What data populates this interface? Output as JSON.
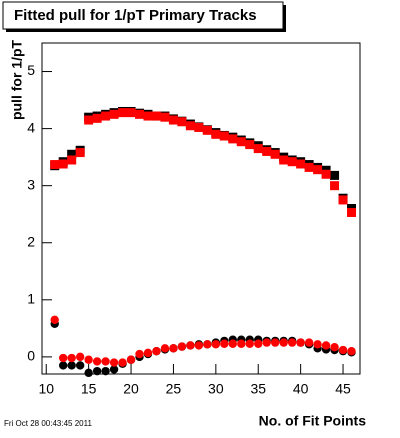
{
  "chart_data": {
    "type": "scatter",
    "title": "Fitted pull for 1/pT Primary Tracks",
    "y_label": "pull for 1/pT",
    "x_label": "No. of Fit Points",
    "footer": "Fri Oct 28 00:43:45 2011",
    "x": [
      11,
      12,
      13,
      14,
      15,
      16,
      17,
      18,
      19,
      20,
      21,
      22,
      23,
      24,
      25,
      26,
      27,
      28,
      29,
      30,
      31,
      32,
      33,
      34,
      35,
      36,
      37,
      38,
      39,
      40,
      41,
      42,
      43,
      44,
      45,
      46
    ],
    "series": [
      {
        "color": "#000000",
        "marker": "square",
        "values": [
          3.35,
          3.42,
          3.55,
          3.62,
          4.2,
          4.22,
          4.25,
          4.28,
          4.3,
          4.3,
          4.27,
          4.25,
          4.22,
          4.22,
          4.17,
          4.13,
          4.08,
          4.03,
          3.98,
          3.93,
          3.88,
          3.85,
          3.8,
          3.75,
          3.7,
          3.63,
          3.58,
          3.5,
          3.45,
          3.42,
          3.37,
          3.32,
          3.27,
          3.18,
          2.78,
          2.6
        ]
      },
      {
        "color": "#ff0000",
        "marker": "square",
        "values": [
          3.37,
          3.38,
          3.45,
          3.58,
          4.15,
          4.18,
          4.22,
          4.25,
          4.28,
          4.28,
          4.25,
          4.22,
          4.22,
          4.2,
          4.15,
          4.12,
          4.05,
          4.02,
          3.97,
          3.9,
          3.87,
          3.82,
          3.77,
          3.72,
          3.65,
          3.6,
          3.55,
          3.45,
          3.42,
          3.38,
          3.32,
          3.28,
          3.2,
          3.0,
          2.75,
          2.53
        ]
      },
      {
        "color": "#000000",
        "marker": "circle",
        "values": [
          0.58,
          -0.15,
          -0.15,
          -0.15,
          -0.28,
          -0.25,
          -0.25,
          -0.22,
          -0.12,
          -0.05,
          0.0,
          0.05,
          0.1,
          0.13,
          0.15,
          0.18,
          0.2,
          0.22,
          0.22,
          0.25,
          0.28,
          0.3,
          0.3,
          0.3,
          0.3,
          0.28,
          0.28,
          0.28,
          0.28,
          0.25,
          0.22,
          0.15,
          0.13,
          0.12,
          0.1,
          0.08
        ]
      },
      {
        "color": "#ff0000",
        "marker": "circle",
        "values": [
          0.65,
          -0.02,
          -0.02,
          0.0,
          -0.05,
          -0.08,
          -0.08,
          -0.1,
          -0.1,
          -0.05,
          0.05,
          0.07,
          0.1,
          0.15,
          0.15,
          0.18,
          0.2,
          0.2,
          0.22,
          0.22,
          0.23,
          0.23,
          0.23,
          0.23,
          0.23,
          0.25,
          0.25,
          0.25,
          0.25,
          0.25,
          0.25,
          0.22,
          0.2,
          0.17,
          0.12,
          0.1
        ]
      }
    ],
    "xlim": [
      9.5,
      47
    ],
    "xticks": [
      10,
      15,
      20,
      25,
      30,
      35,
      40,
      45
    ],
    "ylim": [
      -0.3,
      5.5
    ],
    "yticks": [
      0,
      1,
      2,
      3,
      4,
      5
    ]
  }
}
